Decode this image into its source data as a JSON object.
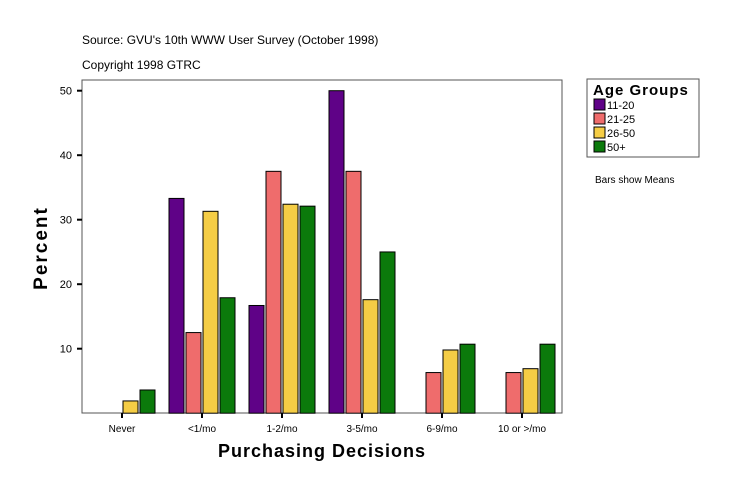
{
  "header": {
    "source": "Source: GVU's 10th WWW User Survey (October 1998)",
    "copyright": "Copyright 1998 GTRC"
  },
  "note": "Bars show Means",
  "chart_data": {
    "type": "bar",
    "xlabel": "Purchasing Decisions",
    "ylabel": "Percent",
    "ylim": [
      0,
      52
    ],
    "yticks": [
      10,
      20,
      30,
      40,
      50
    ],
    "grid": false,
    "legend": {
      "title": "Age Groups",
      "placement": "top-right"
    },
    "categories": [
      "Never",
      "<1/mo",
      "1-2/mo",
      "3-5/mo",
      "6-9/mo",
      "10 or >/mo"
    ],
    "series": [
      {
        "name": "11-20",
        "color": "#5f0287",
        "values": [
          0,
          33.3,
          16.7,
          50.0,
          0,
          0
        ]
      },
      {
        "name": "21-25",
        "color": "#ef6c6c",
        "values": [
          0,
          12.5,
          37.5,
          37.5,
          6.3,
          6.3
        ]
      },
      {
        "name": "26-50",
        "color": "#f5cd45",
        "values": [
          1.9,
          31.3,
          32.4,
          17.6,
          9.8,
          6.9
        ]
      },
      {
        "name": "50+",
        "color": "#0b7a0b",
        "values": [
          3.6,
          17.9,
          32.1,
          25.0,
          10.7,
          10.7
        ]
      }
    ]
  }
}
